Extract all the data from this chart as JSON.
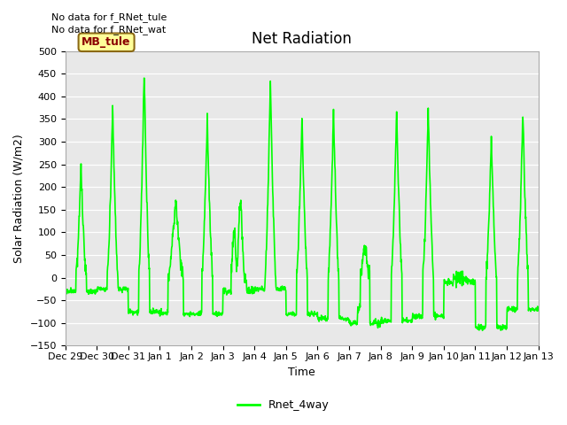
{
  "title": "Net Radiation",
  "xlabel": "Time",
  "ylabel": "Solar Radiation (W/m2)",
  "ylim": [
    -150,
    500
  ],
  "yticks": [
    -150,
    -100,
    -50,
    0,
    50,
    100,
    150,
    200,
    250,
    300,
    350,
    400,
    450,
    500
  ],
  "line_color": "#00FF00",
  "line_width": 1.2,
  "background_color": "#E8E8E8",
  "annotations": [
    "No data for f_RNet_tule",
    "No data for f_RNet_wat"
  ],
  "legend_label": "Rnet_4way",
  "legend_box_color": "#FFFF99",
  "legend_box_edge_color": "#8B6914",
  "legend_text_color": "#8B0000",
  "x_tick_labels": [
    "Dec 29",
    "Dec 30",
    "Dec 31",
    "Jan 1",
    "Jan 2",
    "Jan 3",
    "Jan 4",
    "Jan 5",
    "Jan 6",
    "Jan 7",
    "Jan 8",
    "Jan 9",
    "Jan 10",
    "Jan 11",
    "Jan 12",
    "Jan 13"
  ],
  "num_days": 15,
  "pts_per_day": 96,
  "figsize": [
    6.4,
    4.8
  ],
  "dpi": 100
}
